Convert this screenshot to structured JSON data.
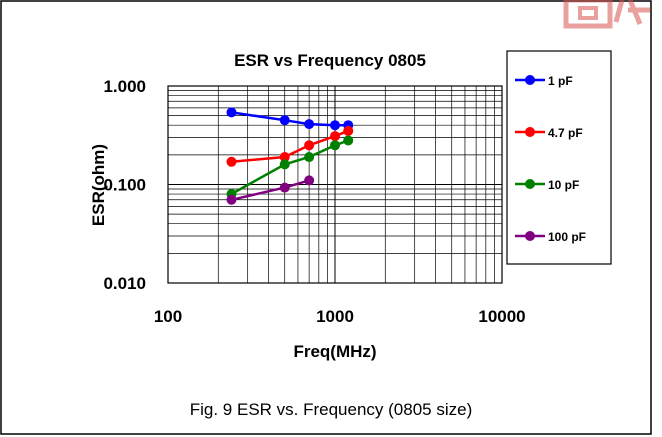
{
  "caption": "Fig. 9 ESR vs. Frequency (0805 size)",
  "chart_data": {
    "type": "line",
    "title": "ESR vs Frequency 0805",
    "xlabel": "Freq(MHz)",
    "ylabel": "ESR(ohm)",
    "x_scale": "log",
    "y_scale": "log",
    "xlim": [
      100,
      10000
    ],
    "ylim": [
      0.01,
      1
    ],
    "x_ticks": [
      100,
      1000,
      10000
    ],
    "x_tick_labels": [
      "100",
      "1000",
      "10000"
    ],
    "y_ticks": [
      0.01,
      0.1,
      1
    ],
    "y_tick_labels": [
      "0.010",
      "0.100",
      "1.000"
    ],
    "grid": true,
    "legend_position": "right",
    "series": [
      {
        "name": "1 pF",
        "color": "#0000ff",
        "x": [
          240,
          500,
          700,
          1000,
          1200
        ],
        "y": [
          0.54,
          0.45,
          0.41,
          0.4,
          0.4
        ]
      },
      {
        "name": "4.7 pF",
        "color": "#ff0000",
        "x": [
          240,
          500,
          700,
          1000,
          1200
        ],
        "y": [
          0.17,
          0.19,
          0.25,
          0.31,
          0.35
        ]
      },
      {
        "name": "10 pF",
        "color": "#008000",
        "x": [
          240,
          500,
          700,
          1000,
          1200
        ],
        "y": [
          0.08,
          0.16,
          0.19,
          0.25,
          0.28
        ]
      },
      {
        "name": "100 pF",
        "color": "#800080",
        "x": [
          240,
          500,
          700
        ],
        "y": [
          0.07,
          0.093,
          0.11
        ]
      }
    ]
  }
}
